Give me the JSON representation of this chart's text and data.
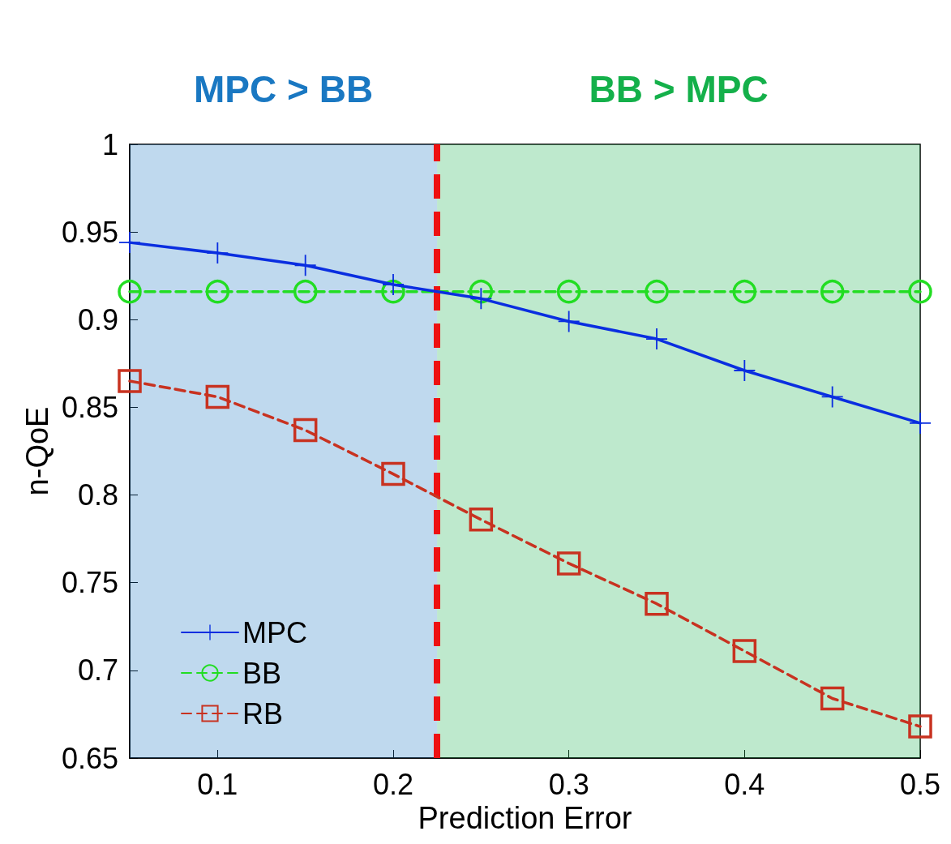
{
  "chart_data": {
    "type": "line",
    "xlabel": "Prediction Error",
    "ylabel": "n-QoE",
    "x": [
      0.05,
      0.1,
      0.15,
      0.2,
      0.25,
      0.3,
      0.35,
      0.4,
      0.45,
      0.5
    ],
    "series": [
      {
        "name": "MPC",
        "color": "#0a2ee0",
        "marker": "cross",
        "line_style": "solid",
        "values": [
          0.944,
          0.938,
          0.931,
          0.92,
          0.912,
          0.899,
          0.889,
          0.871,
          0.856,
          0.841
        ]
      },
      {
        "name": "BB",
        "color": "#22dd22",
        "marker": "circle",
        "line_style": "dashed",
        "values": [
          0.916,
          0.916,
          0.916,
          0.916,
          0.916,
          0.916,
          0.916,
          0.916,
          0.916,
          0.916
        ]
      },
      {
        "name": "RB",
        "color": "#c83220",
        "marker": "square",
        "line_style": "dashed",
        "values": [
          0.865,
          0.856,
          0.837,
          0.812,
          0.786,
          0.761,
          0.738,
          0.711,
          0.684,
          0.668
        ]
      }
    ],
    "xlim": [
      0.05,
      0.5
    ],
    "xticks": [
      0.1,
      0.2,
      0.3,
      0.4,
      0.5
    ],
    "ylim": [
      0.65,
      1
    ],
    "yticks": [
      0.65,
      0.7,
      0.75,
      0.8,
      0.85,
      0.9,
      0.95,
      1
    ],
    "ref_lines": [
      {
        "axis": "x",
        "value": 0.225,
        "color": "#ee1111",
        "line_style": "dashed"
      }
    ],
    "bands": [
      {
        "axis": "x",
        "from": 0.05,
        "to": 0.225,
        "label": "MPC > BB",
        "color": "#1a78c2"
      },
      {
        "axis": "x",
        "from": 0.225,
        "to": 0.5,
        "label": "BB > MPC",
        "color": "#14b04a"
      }
    ],
    "grid": false,
    "legend": "bottom left"
  }
}
